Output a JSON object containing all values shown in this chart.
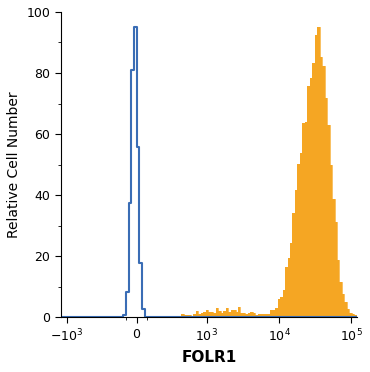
{
  "title": "",
  "xlabel": "FOLR1",
  "ylabel": "Relative Cell Number",
  "ylim": [
    0,
    100
  ],
  "yticks": [
    0,
    20,
    40,
    60,
    80,
    100
  ],
  "blue_color": "#3a6db5",
  "orange_color": "#f5a623",
  "background_color": "#ffffff",
  "linthresh": 300,
  "linscale": 0.4
}
